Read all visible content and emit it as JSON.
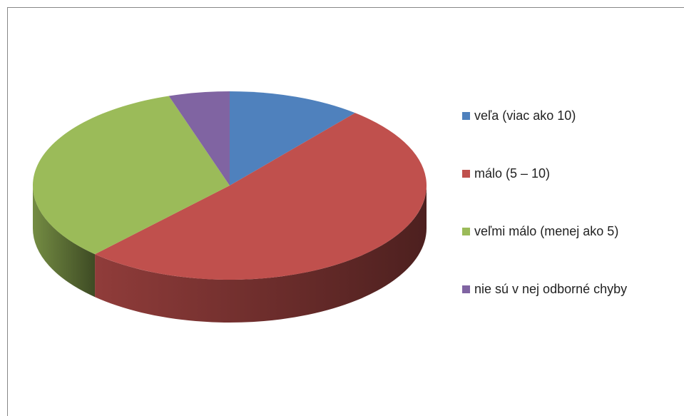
{
  "chart_data": {
    "type": "pie",
    "categories": [
      "veľa (viac ako 10)",
      "málo (5 – 10)",
      "veľmi málo (menej ako 5)",
      "nie sú v nej odborné chyby"
    ],
    "values": [
      11,
      51,
      33,
      5
    ],
    "colors": [
      "#4f81bd",
      "#c0504d",
      "#9bbb59",
      "#8064a2"
    ],
    "legend": "right"
  }
}
